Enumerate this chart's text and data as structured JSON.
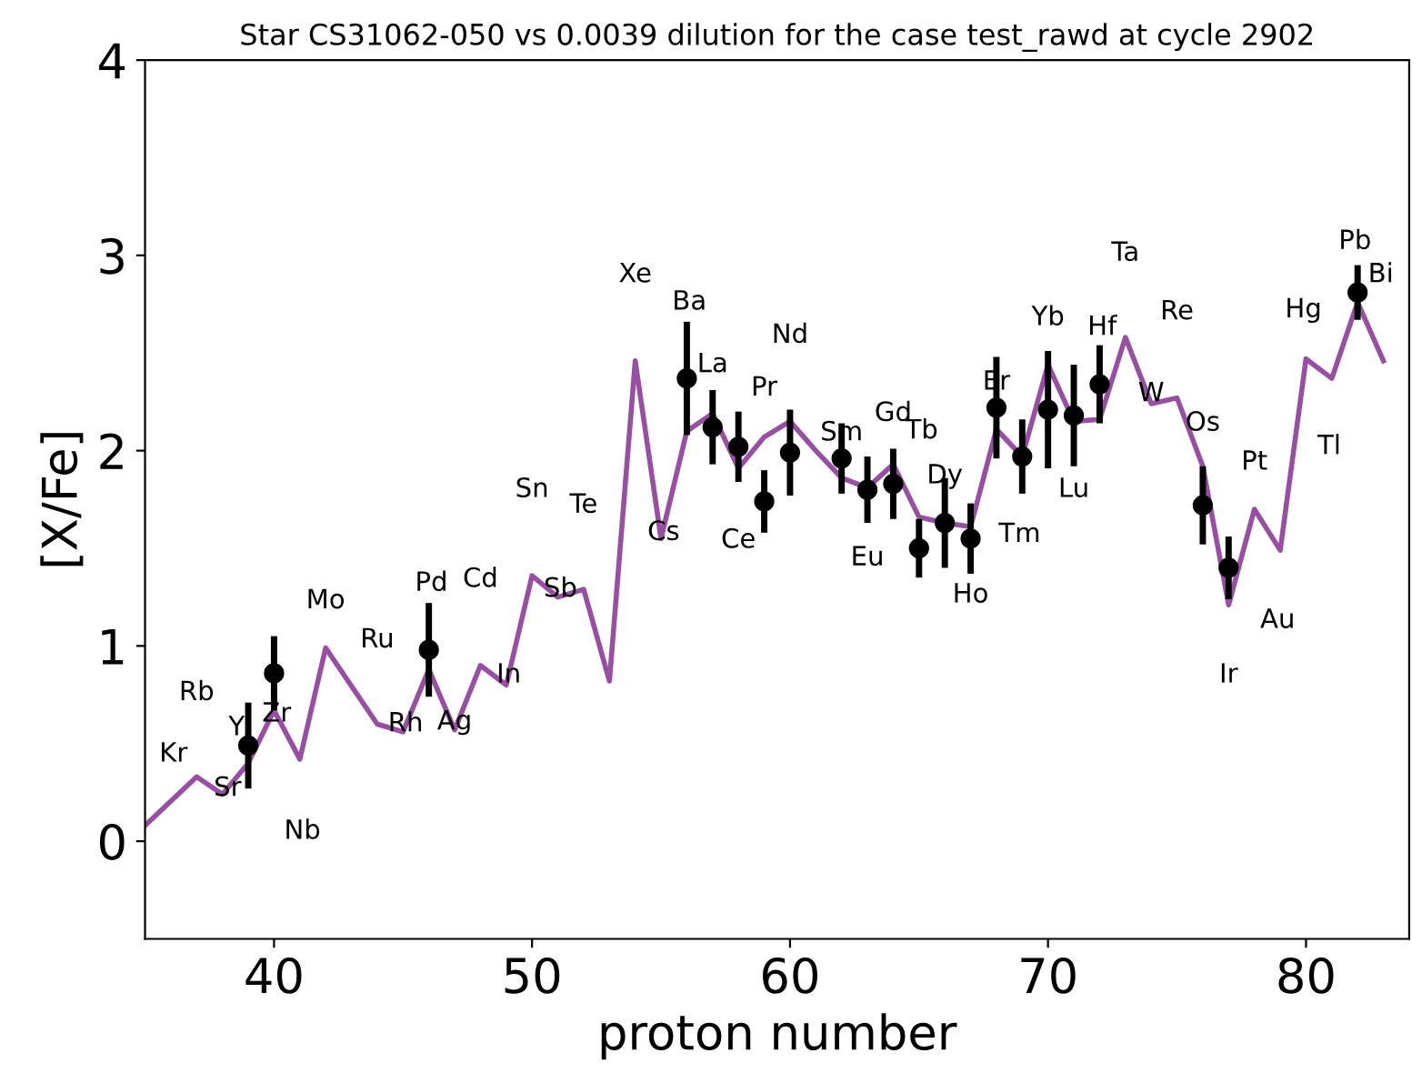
{
  "chart_data": {
    "type": "line",
    "title": "Star CS31062-050 vs 0.0039 dilution for the case test_rawd at cycle 2902",
    "xlabel": "proton number",
    "ylabel": "[X/Fe]",
    "xlim": [
      35,
      84
    ],
    "ylim": [
      -0.5,
      4
    ],
    "xticks": [
      40,
      50,
      60,
      70,
      80
    ],
    "yticks": [
      0,
      1,
      2,
      3,
      4
    ],
    "grid": false,
    "legend": false,
    "series": [
      {
        "color": "#984ea3",
        "marker": "none",
        "line_style": "solid",
        "x": [
          35,
          37,
          38,
          39,
          40,
          41,
          42,
          44,
          45,
          46,
          47,
          48,
          49,
          50,
          51,
          52,
          53,
          54,
          55,
          56,
          57,
          58,
          59,
          60,
          61,
          62,
          63,
          64,
          65,
          66,
          67,
          68,
          69,
          70,
          71,
          72,
          73,
          74,
          75,
          76,
          77,
          78,
          79,
          80,
          81,
          82,
          83
        ],
        "values": [
          0.08,
          0.33,
          0.24,
          0.4,
          0.67,
          0.42,
          0.99,
          0.6,
          0.56,
          0.88,
          0.57,
          0.9,
          0.8,
          1.36,
          1.25,
          1.29,
          0.82,
          2.46,
          1.55,
          2.1,
          2.19,
          1.91,
          2.07,
          2.15,
          2.0,
          1.86,
          1.81,
          1.93,
          1.66,
          1.63,
          1.61,
          2.11,
          1.97,
          2.44,
          2.15,
          2.16,
          2.58,
          2.24,
          2.27,
          1.92,
          1.21,
          1.7,
          1.49,
          2.47,
          2.37,
          2.76,
          2.46
        ]
      },
      {
        "type": "scatter",
        "color": "#000000",
        "marker": "circle",
        "x": [
          39,
          40,
          46,
          56,
          57,
          58,
          59,
          60,
          62,
          63,
          64,
          65,
          66,
          67,
          68,
          69,
          70,
          71,
          72,
          76,
          77,
          82
        ],
        "values": [
          0.49,
          0.86,
          0.98,
          2.37,
          2.12,
          2.02,
          1.74,
          1.99,
          1.96,
          1.8,
          1.83,
          1.5,
          1.63,
          1.55,
          2.22,
          1.97,
          2.21,
          2.18,
          2.34,
          1.72,
          1.4,
          2.81
        ],
        "errors": [
          0.22,
          0.19,
          0.24,
          0.29,
          0.19,
          0.18,
          0.16,
          0.22,
          0.18,
          0.17,
          0.18,
          0.15,
          0.23,
          0.18,
          0.26,
          0.19,
          0.3,
          0.26,
          0.2,
          0.2,
          0.16,
          0.14
        ]
      }
    ],
    "annotations": [
      {
        "text": "Kr",
        "x": 36,
        "y": 0.2
      },
      {
        "text": "Rb",
        "x": 37,
        "y": 0.33
      },
      {
        "text": "Sr",
        "x": 38,
        "y": 0.24
      },
      {
        "text": "Y",
        "x": 39,
        "y": 0.4
      },
      {
        "text": "Zr",
        "x": 40,
        "y": 0.67
      },
      {
        "text": "Nb",
        "x": 41,
        "y": 0.42
      },
      {
        "text": "Mo",
        "x": 42,
        "y": 0.99
      },
      {
        "text": "Ru",
        "x": 44,
        "y": 0.6
      },
      {
        "text": "Rh",
        "x": 45,
        "y": 0.56
      },
      {
        "text": "Pd",
        "x": 46,
        "y": 0.88
      },
      {
        "text": "Ag",
        "x": 47,
        "y": 0.57
      },
      {
        "text": "Cd",
        "x": 48,
        "y": 0.9
      },
      {
        "text": "In",
        "x": 49,
        "y": 0.8
      },
      {
        "text": "Sn",
        "x": 50,
        "y": 1.36
      },
      {
        "text": "Sb",
        "x": 51,
        "y": 1.25
      },
      {
        "text": "Te",
        "x": 52,
        "y": 1.29
      },
      {
        "text": "Xe",
        "x": 54,
        "y": 2.46
      },
      {
        "text": "Cs",
        "x": 55,
        "y": 1.55
      },
      {
        "text": "Ba",
        "x": 56,
        "y": 2.37
      },
      {
        "text": "La",
        "x": 57,
        "y": 2.19
      },
      {
        "text": "Ce",
        "x": 58,
        "y": 1.91
      },
      {
        "text": "Pr",
        "x": 59,
        "y": 2.07
      },
      {
        "text": "Nd",
        "x": 60,
        "y": 2.15
      },
      {
        "text": "Sm",
        "x": 62,
        "y": 1.86
      },
      {
        "text": "Eu",
        "x": 63,
        "y": 1.81
      },
      {
        "text": "Gd",
        "x": 64,
        "y": 1.93
      },
      {
        "text": "Tb",
        "x": 65,
        "y": 1.66
      },
      {
        "text": "Dy",
        "x": 66,
        "y": 1.63
      },
      {
        "text": "Ho",
        "x": 67,
        "y": 1.61
      },
      {
        "text": "Er",
        "x": 68,
        "y": 2.11
      },
      {
        "text": "Tm",
        "x": 69,
        "y": 1.97
      },
      {
        "text": "Yb",
        "x": 70,
        "y": 2.44
      },
      {
        "text": "Lu",
        "x": 71,
        "y": 2.15
      },
      {
        "text": "Hf",
        "x": 72,
        "y": 2.34
      },
      {
        "text": "Ta",
        "x": 73,
        "y": 2.58
      },
      {
        "text": "W",
        "x": 74,
        "y": 2.24
      },
      {
        "text": "Re",
        "x": 75,
        "y": 2.27
      },
      {
        "text": "Os",
        "x": 76,
        "y": 1.92
      },
      {
        "text": "Ir",
        "x": 77,
        "y": 1.21
      },
      {
        "text": "Pt",
        "x": 78,
        "y": 1.7
      },
      {
        "text": "Au",
        "x": 79,
        "y": 1.49
      },
      {
        "text": "Hg",
        "x": 80,
        "y": 2.47
      },
      {
        "text": "Tl",
        "x": 81,
        "y": 2.37
      },
      {
        "text": "Pb",
        "x": 82,
        "y": 2.76
      },
      {
        "text": "Bi",
        "x": 83,
        "y": 2.46
      }
    ]
  }
}
